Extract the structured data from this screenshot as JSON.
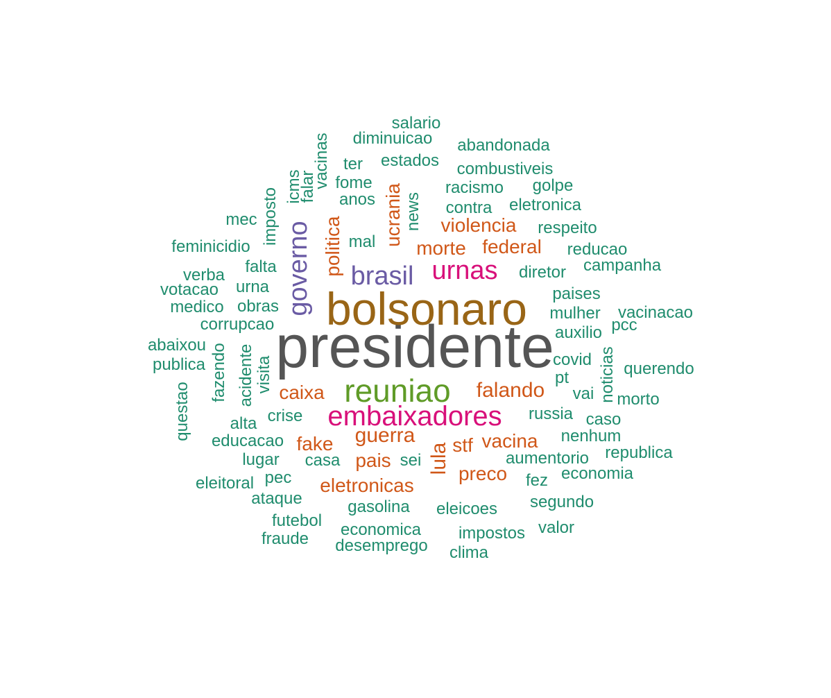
{
  "word_cloud": {
    "colors": {
      "grey": "#555555",
      "brown": "#996516",
      "green": "#5f9b27",
      "pink": "#d8107a",
      "purple": "#6a5ba4",
      "orange": "#d05718",
      "teal": "#1f8c6d"
    },
    "words": [
      {
        "text": "presidente",
        "tier": 1,
        "color": "grey"
      },
      {
        "text": "bolsonaro",
        "tier": 2,
        "color": "brown"
      },
      {
        "text": "reuniao",
        "tier": 3,
        "color": "green"
      },
      {
        "text": "embaixadores",
        "tier": 4,
        "color": "pink"
      },
      {
        "text": "urnas",
        "tier": 4,
        "color": "pink"
      },
      {
        "text": "brasil",
        "tier": 4,
        "color": "purple"
      },
      {
        "text": "governo",
        "tier": 4,
        "color": "purple"
      },
      {
        "text": "guerra",
        "tier": 5,
        "color": "orange"
      },
      {
        "text": "falando",
        "tier": 5,
        "color": "orange"
      },
      {
        "text": "lula",
        "tier": 5,
        "color": "orange"
      },
      {
        "text": "ucrania",
        "tier": 5,
        "color": "orange"
      },
      {
        "text": "politica",
        "tier": 5,
        "color": "orange"
      },
      {
        "text": "violencia",
        "tier": 5,
        "color": "orange"
      },
      {
        "text": "morte",
        "tier": 5,
        "color": "orange"
      },
      {
        "text": "federal",
        "tier": 5,
        "color": "orange"
      },
      {
        "text": "caixa",
        "tier": 5,
        "color": "orange"
      },
      {
        "text": "fake",
        "tier": 5,
        "color": "orange"
      },
      {
        "text": "pais",
        "tier": 5,
        "color": "orange"
      },
      {
        "text": "stf",
        "tier": 5,
        "color": "orange"
      },
      {
        "text": "vacina",
        "tier": 5,
        "color": "orange"
      },
      {
        "text": "preco",
        "tier": 5,
        "color": "orange"
      },
      {
        "text": "eletronicas",
        "tier": 5,
        "color": "orange"
      },
      {
        "text": "salario",
        "tier": 6,
        "color": "teal"
      },
      {
        "text": "diminuicao",
        "tier": 6,
        "color": "teal"
      },
      {
        "text": "abandonada",
        "tier": 6,
        "color": "teal"
      },
      {
        "text": "ter",
        "tier": 6,
        "color": "teal"
      },
      {
        "text": "estados",
        "tier": 6,
        "color": "teal"
      },
      {
        "text": "combustiveis",
        "tier": 6,
        "color": "teal"
      },
      {
        "text": "vacinas",
        "tier": 6,
        "color": "teal"
      },
      {
        "text": "fome",
        "tier": 6,
        "color": "teal"
      },
      {
        "text": "racismo",
        "tier": 6,
        "color": "teal"
      },
      {
        "text": "golpe",
        "tier": 6,
        "color": "teal"
      },
      {
        "text": "icms",
        "tier": 6,
        "color": "teal"
      },
      {
        "text": "falar",
        "tier": 6,
        "color": "teal"
      },
      {
        "text": "anos",
        "tier": 6,
        "color": "teal"
      },
      {
        "text": "news",
        "tier": 6,
        "color": "teal"
      },
      {
        "text": "contra",
        "tier": 6,
        "color": "teal"
      },
      {
        "text": "eletronica",
        "tier": 6,
        "color": "teal"
      },
      {
        "text": "imposto",
        "tier": 6,
        "color": "teal"
      },
      {
        "text": "mec",
        "tier": 6,
        "color": "teal"
      },
      {
        "text": "respeito",
        "tier": 6,
        "color": "teal"
      },
      {
        "text": "mal",
        "tier": 6,
        "color": "teal"
      },
      {
        "text": "feminicidio",
        "tier": 6,
        "color": "teal"
      },
      {
        "text": "reducao",
        "tier": 6,
        "color": "teal"
      },
      {
        "text": "falta",
        "tier": 6,
        "color": "teal"
      },
      {
        "text": "campanha",
        "tier": 6,
        "color": "teal"
      },
      {
        "text": "verba",
        "tier": 6,
        "color": "teal"
      },
      {
        "text": "diretor",
        "tier": 6,
        "color": "teal"
      },
      {
        "text": "votacao",
        "tier": 6,
        "color": "teal"
      },
      {
        "text": "urna",
        "tier": 6,
        "color": "teal"
      },
      {
        "text": "paises",
        "tier": 6,
        "color": "teal"
      },
      {
        "text": "medico",
        "tier": 6,
        "color": "teal"
      },
      {
        "text": "obras",
        "tier": 6,
        "color": "teal"
      },
      {
        "text": "mulher",
        "tier": 6,
        "color": "teal"
      },
      {
        "text": "vacinacao",
        "tier": 6,
        "color": "teal"
      },
      {
        "text": "corrupcao",
        "tier": 6,
        "color": "teal"
      },
      {
        "text": "pcc",
        "tier": 6,
        "color": "teal"
      },
      {
        "text": "auxilio",
        "tier": 6,
        "color": "teal"
      },
      {
        "text": "abaixou",
        "tier": 6,
        "color": "teal"
      },
      {
        "text": "noticias",
        "tier": 6,
        "color": "teal"
      },
      {
        "text": "publica",
        "tier": 6,
        "color": "teal"
      },
      {
        "text": "fazendo",
        "tier": 6,
        "color": "teal"
      },
      {
        "text": "acidente",
        "tier": 6,
        "color": "teal"
      },
      {
        "text": "visita",
        "tier": 6,
        "color": "teal"
      },
      {
        "text": "covid",
        "tier": 6,
        "color": "teal"
      },
      {
        "text": "querendo",
        "tier": 6,
        "color": "teal"
      },
      {
        "text": "pt",
        "tier": 6,
        "color": "teal"
      },
      {
        "text": "questao",
        "tier": 6,
        "color": "teal"
      },
      {
        "text": "vai",
        "tier": 6,
        "color": "teal"
      },
      {
        "text": "morto",
        "tier": 6,
        "color": "teal"
      },
      {
        "text": "russia",
        "tier": 6,
        "color": "teal"
      },
      {
        "text": "crise",
        "tier": 6,
        "color": "teal"
      },
      {
        "text": "alta",
        "tier": 6,
        "color": "teal"
      },
      {
        "text": "caso",
        "tier": 6,
        "color": "teal"
      },
      {
        "text": "educacao",
        "tier": 6,
        "color": "teal"
      },
      {
        "text": "nenhum",
        "tier": 6,
        "color": "teal"
      },
      {
        "text": "lugar",
        "tier": 6,
        "color": "teal"
      },
      {
        "text": "casa",
        "tier": 6,
        "color": "teal"
      },
      {
        "text": "sei",
        "tier": 6,
        "color": "teal"
      },
      {
        "text": "aumentorio",
        "tier": 6,
        "color": "teal"
      },
      {
        "text": "republica",
        "tier": 6,
        "color": "teal"
      },
      {
        "text": "pec",
        "tier": 6,
        "color": "teal"
      },
      {
        "text": "economia",
        "tier": 6,
        "color": "teal"
      },
      {
        "text": "eleitoral",
        "tier": 6,
        "color": "teal"
      },
      {
        "text": "fez",
        "tier": 6,
        "color": "teal"
      },
      {
        "text": "ataque",
        "tier": 6,
        "color": "teal"
      },
      {
        "text": "gasolina",
        "tier": 6,
        "color": "teal"
      },
      {
        "text": "segundo",
        "tier": 6,
        "color": "teal"
      },
      {
        "text": "eleicoes",
        "tier": 6,
        "color": "teal"
      },
      {
        "text": "futebol",
        "tier": 6,
        "color": "teal"
      },
      {
        "text": "economica",
        "tier": 6,
        "color": "teal"
      },
      {
        "text": "valor",
        "tier": 6,
        "color": "teal"
      },
      {
        "text": "impostos",
        "tier": 6,
        "color": "teal"
      },
      {
        "text": "fraude",
        "tier": 6,
        "color": "teal"
      },
      {
        "text": "desemprego",
        "tier": 6,
        "color": "teal"
      },
      {
        "text": "clima",
        "tier": 6,
        "color": "teal"
      }
    ]
  }
}
